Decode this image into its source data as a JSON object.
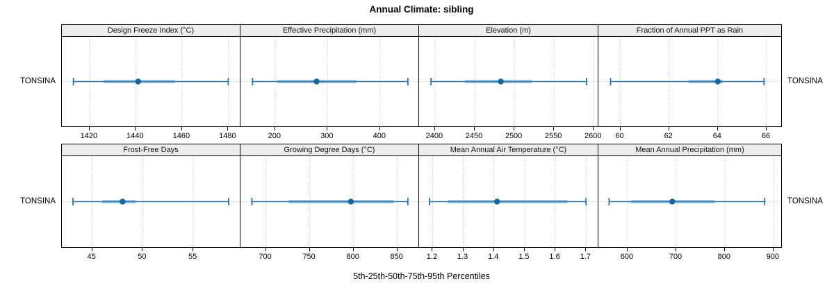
{
  "title": "Annual Climate: sibling",
  "xlabel": "5th-25th-50th-75th-95th Percentiles",
  "row_label": "TONSINA",
  "chart_data": {
    "type": "dotplot-percentile-whiskers",
    "title": "Annual Climate: sibling",
    "xlabel": "5th-25th-50th-75th-95th Percentiles",
    "category": "TONSINA",
    "layout": "2 rows x 4 columns, free x scales per panel",
    "grid": "dotted vertical gridlines at ticks plus dotted horizontal reference line",
    "legend_position": "none",
    "colors": {
      "line": "#1f77b4",
      "band": "#a5c9e3",
      "dot": "#15689f",
      "grid": "#bdbdbd",
      "strip_bg": "#ececec",
      "border": "#000000"
    },
    "panels": [
      {
        "title": "Design Freeze Index (°C)",
        "xlim": [
          1408,
          1485
        ],
        "ticks": [
          1420,
          1440,
          1460,
          1480
        ],
        "tick_labels": [
          "1420",
          "1440",
          "1460",
          "1480"
        ],
        "percentiles": {
          "p5": 1413,
          "p25": 1426,
          "p50": 1441,
          "p75": 1457,
          "p95": 1480
        }
      },
      {
        "title": "Effective Precipitation (mm)",
        "xlim": [
          134,
          473
        ],
        "ticks": [
          200,
          300,
          400
        ],
        "tick_labels": [
          "200",
          "300",
          "400"
        ],
        "percentiles": {
          "p5": 157,
          "p25": 204,
          "p50": 279,
          "p75": 355,
          "p95": 453
        }
      },
      {
        "title": "Elevation (m)",
        "xlim": [
          2380,
          2605
        ],
        "ticks": [
          2400,
          2450,
          2500,
          2550,
          2600
        ],
        "tick_labels": [
          "2400",
          "2450",
          "2500",
          "2550",
          "2600"
        ],
        "percentiles": {
          "p5": 2395,
          "p25": 2438,
          "p50": 2483,
          "p75": 2522,
          "p95": 2591
        }
      },
      {
        "title": "Fraction of Annual PPT as Rain",
        "xlim": [
          59.1,
          66.6
        ],
        "ticks": [
          60,
          62,
          64,
          66
        ],
        "tick_labels": [
          "60",
          "62",
          "64",
          "66"
        ],
        "percentiles": {
          "p5": 59.6,
          "p25": 62.8,
          "p50": 64.0,
          "p75": 64.2,
          "p95": 65.9
        }
      },
      {
        "title": "Frost-Free Days",
        "xlim": [
          42,
          59.6
        ],
        "ticks": [
          45,
          50,
          55
        ],
        "tick_labels": [
          "45",
          "50",
          "55"
        ],
        "percentiles": {
          "p5": 43.1,
          "p25": 46.0,
          "p50": 48.0,
          "p75": 49.3,
          "p95": 58.5
        }
      },
      {
        "title": "Growing Degree Days (°C)",
        "xlim": [
          671,
          874
        ],
        "ticks": [
          700,
          750,
          800,
          850
        ],
        "tick_labels": [
          "700",
          "750",
          "800",
          "850"
        ],
        "percentiles": {
          "p5": 684,
          "p25": 726,
          "p50": 797,
          "p75": 846,
          "p95": 862
        }
      },
      {
        "title": "Mean Annual Air Temperature (°C)",
        "xlim": [
          1.156,
          1.738
        ],
        "ticks": [
          1.2,
          1.3,
          1.4,
          1.5,
          1.6,
          1.7
        ],
        "tick_labels": [
          "1.2",
          "1.3",
          "1.4",
          "1.5",
          "1.6",
          "1.7"
        ],
        "percentiles": {
          "p5": 1.19,
          "p25": 1.25,
          "p50": 1.41,
          "p75": 1.64,
          "p95": 1.7
        }
      },
      {
        "title": "Mean Annual Precipitation (mm)",
        "xlim": [
          540,
          916
        ],
        "ticks": [
          600,
          700,
          800,
          900
        ],
        "tick_labels": [
          "600",
          "700",
          "800",
          "900"
        ],
        "percentiles": {
          "p5": 562,
          "p25": 607,
          "p50": 692,
          "p75": 779,
          "p95": 882
        }
      }
    ]
  }
}
